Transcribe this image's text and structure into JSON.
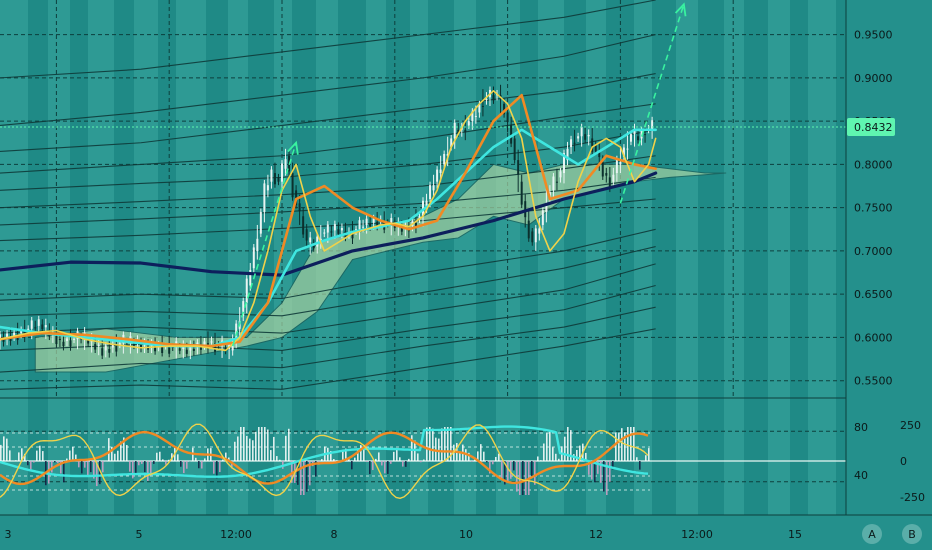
{
  "colors": {
    "background": "#24908c",
    "band_light": "#3aa7a0",
    "band_dark": "#1f8a86",
    "grid": "#0d3f3d",
    "sma_long": "#0d1f5c",
    "ema_fast": "#f0d24a",
    "ema_mid": "#f08a24",
    "ema_cyan": "#3fe6e0",
    "envelope": "#0e3a38",
    "cloud": "#a6d2a3",
    "arrow": "#39f2a0",
    "candle_up": "#e8f4f2",
    "candle_down": "#0b2f2d",
    "price_line": "#5ff5b0",
    "price_label_bg": "#5ff5b0",
    "osc_hist_up": "#ffffff",
    "osc_hist_down": "#d3a0c8",
    "osc_hist_dark": "#101a40"
  },
  "chart_data": {
    "type": "line",
    "instrument": "",
    "y_axis": {
      "ticks": [
        "0.9500",
        "0.9000",
        "0.8500",
        "0.8000",
        "0.7500",
        "0.7000",
        "0.6500",
        "0.6000",
        "0.5500"
      ],
      "tick_values": [
        0.95,
        0.9,
        0.85,
        0.8,
        0.75,
        0.7,
        0.65,
        0.6,
        0.55
      ],
      "range": [
        0.53,
        0.99
      ]
    },
    "current_price": {
      "value": 0.8432,
      "label": "0.8432"
    },
    "x_axis": {
      "labels": [
        "3",
        "5",
        "12:00",
        "8",
        "10",
        "12",
        "12:00",
        "15"
      ],
      "range": [
        0,
        120
      ]
    },
    "oscillator": {
      "left_ticks": [
        "80",
        "40"
      ],
      "left_values": [
        80,
        40
      ],
      "right_ticks": [
        "250",
        "0",
        "-250"
      ],
      "right_values": [
        250,
        0,
        -250
      ]
    },
    "series": [
      {
        "id": "price",
        "x": [
          0,
          3,
          6,
          9,
          12,
          15,
          18,
          21,
          24,
          27,
          30,
          33,
          34,
          35,
          36,
          37,
          38,
          39,
          40,
          41,
          42,
          43,
          44,
          45,
          46,
          48,
          50,
          52,
          54,
          56,
          58,
          60,
          62,
          64,
          65,
          66,
          67,
          68,
          69,
          70,
          71,
          72,
          73,
          74,
          75,
          76,
          77,
          78,
          79,
          80,
          81,
          82,
          83,
          84,
          85,
          86,
          87,
          88,
          90,
          91,
          92,
          93
        ],
        "values": [
          0.596,
          0.605,
          0.615,
          0.595,
          0.6,
          0.585,
          0.595,
          0.59,
          0.59,
          0.585,
          0.595,
          0.585,
          0.61,
          0.64,
          0.68,
          0.72,
          0.77,
          0.79,
          0.78,
          0.81,
          0.77,
          0.74,
          0.71,
          0.705,
          0.72,
          0.725,
          0.72,
          0.73,
          0.735,
          0.73,
          0.725,
          0.74,
          0.78,
          0.82,
          0.84,
          0.84,
          0.85,
          0.86,
          0.875,
          0.88,
          0.88,
          0.86,
          0.83,
          0.78,
          0.735,
          0.71,
          0.73,
          0.76,
          0.78,
          0.79,
          0.82,
          0.83,
          0.835,
          0.83,
          0.815,
          0.79,
          0.78,
          0.8,
          0.835,
          0.83,
          0.84,
          0.843
        ]
      },
      {
        "id": "sma-long",
        "x": [
          0,
          10,
          20,
          30,
          40,
          50,
          60,
          70,
          80,
          90,
          93
        ],
        "values": [
          0.678,
          0.687,
          0.686,
          0.676,
          0.672,
          0.7,
          0.715,
          0.735,
          0.76,
          0.78,
          0.79
        ]
      },
      {
        "id": "ema-fast",
        "x": [
          0,
          4,
          8,
          12,
          16,
          20,
          24,
          28,
          32,
          34,
          36,
          38,
          40,
          42,
          44,
          46,
          48,
          50,
          52,
          54,
          56,
          58,
          60,
          62,
          64,
          66,
          68,
          70,
          72,
          74,
          76,
          78,
          80,
          82,
          84,
          86,
          88,
          90,
          92,
          93
        ],
        "values": [
          0.598,
          0.605,
          0.608,
          0.598,
          0.592,
          0.588,
          0.59,
          0.59,
          0.585,
          0.6,
          0.64,
          0.7,
          0.77,
          0.8,
          0.74,
          0.7,
          0.71,
          0.72,
          0.725,
          0.73,
          0.732,
          0.728,
          0.74,
          0.77,
          0.82,
          0.85,
          0.87,
          0.885,
          0.87,
          0.83,
          0.74,
          0.7,
          0.72,
          0.78,
          0.82,
          0.83,
          0.82,
          0.78,
          0.8,
          0.83
        ]
      },
      {
        "id": "ema-mid",
        "x": [
          0,
          6,
          12,
          18,
          24,
          30,
          34,
          38,
          42,
          46,
          50,
          54,
          58,
          62,
          66,
          70,
          74,
          78,
          82,
          86,
          90,
          93
        ],
        "values": [
          0.598,
          0.605,
          0.603,
          0.598,
          0.592,
          0.59,
          0.595,
          0.64,
          0.76,
          0.775,
          0.75,
          0.735,
          0.725,
          0.735,
          0.79,
          0.85,
          0.88,
          0.76,
          0.77,
          0.81,
          0.8,
          0.795
        ]
      },
      {
        "id": "ema-cyan",
        "x": [
          0,
          6,
          12,
          18,
          24,
          30,
          34,
          38,
          42,
          46,
          50,
          54,
          58,
          62,
          66,
          70,
          74,
          78,
          82,
          86,
          90,
          93
        ],
        "values": [
          0.612,
          0.605,
          0.6,
          0.595,
          0.59,
          0.59,
          0.6,
          0.64,
          0.7,
          0.712,
          0.722,
          0.728,
          0.735,
          0.76,
          0.79,
          0.82,
          0.84,
          0.82,
          0.8,
          0.82,
          0.84,
          0.84
        ]
      }
    ],
    "envelopes": {
      "upper": [
        [
          [
            0,
            0.9
          ],
          [
            20,
            0.91
          ],
          [
            40,
            0.93
          ],
          [
            60,
            0.95
          ],
          [
            80,
            0.97
          ],
          [
            93,
            0.99
          ]
        ],
        [
          [
            0,
            0.845
          ],
          [
            20,
            0.86
          ],
          [
            40,
            0.88
          ],
          [
            60,
            0.9
          ],
          [
            80,
            0.925
          ],
          [
            93,
            0.95
          ]
        ],
        [
          [
            0,
            0.815
          ],
          [
            20,
            0.825
          ],
          [
            40,
            0.845
          ],
          [
            60,
            0.865
          ],
          [
            80,
            0.885
          ],
          [
            93,
            0.905
          ]
        ],
        [
          [
            0,
            0.79
          ],
          [
            20,
            0.8
          ],
          [
            40,
            0.81
          ],
          [
            60,
            0.83
          ],
          [
            80,
            0.855
          ],
          [
            93,
            0.87
          ]
        ],
        [
          [
            0,
            0.77
          ],
          [
            20,
            0.778
          ],
          [
            40,
            0.785
          ],
          [
            60,
            0.8
          ],
          [
            80,
            0.82
          ],
          [
            93,
            0.84
          ]
        ],
        [
          [
            0,
            0.75
          ],
          [
            20,
            0.757
          ],
          [
            40,
            0.765
          ],
          [
            60,
            0.775
          ],
          [
            80,
            0.795
          ],
          [
            93,
            0.81
          ]
        ],
        [
          [
            0,
            0.73
          ],
          [
            20,
            0.737
          ],
          [
            40,
            0.745
          ],
          [
            60,
            0.755
          ],
          [
            80,
            0.77
          ],
          [
            93,
            0.785
          ]
        ],
        [
          [
            0,
            0.712
          ],
          [
            20,
            0.718
          ],
          [
            40,
            0.726
          ],
          [
            60,
            0.735
          ],
          [
            80,
            0.75
          ],
          [
            93,
            0.76
          ]
        ]
      ],
      "lower": [
        [
          [
            0,
            0.643
          ],
          [
            20,
            0.65
          ],
          [
            40,
            0.645
          ],
          [
            60,
            0.675
          ],
          [
            80,
            0.7
          ],
          [
            93,
            0.725
          ]
        ],
        [
          [
            0,
            0.625
          ],
          [
            20,
            0.63
          ],
          [
            40,
            0.625
          ],
          [
            60,
            0.652
          ],
          [
            80,
            0.68
          ],
          [
            93,
            0.705
          ]
        ],
        [
          [
            0,
            0.605
          ],
          [
            20,
            0.612
          ],
          [
            40,
            0.605
          ],
          [
            60,
            0.63
          ],
          [
            80,
            0.655
          ],
          [
            93,
            0.685
          ]
        ],
        [
          [
            0,
            0.585
          ],
          [
            20,
            0.592
          ],
          [
            40,
            0.585
          ],
          [
            60,
            0.61
          ],
          [
            80,
            0.632
          ],
          [
            93,
            0.66
          ]
        ],
        [
          [
            0,
            0.56
          ],
          [
            20,
            0.57
          ],
          [
            40,
            0.565
          ],
          [
            60,
            0.59
          ],
          [
            80,
            0.612
          ],
          [
            93,
            0.635
          ]
        ],
        [
          [
            0,
            0.54
          ],
          [
            20,
            0.545
          ],
          [
            40,
            0.54
          ],
          [
            60,
            0.565
          ],
          [
            80,
            0.59
          ],
          [
            93,
            0.61
          ]
        ]
      ]
    },
    "cloud": {
      "upper": [
        [
          5,
          0.6
        ],
        [
          15,
          0.61
        ],
        [
          25,
          0.6
        ],
        [
          35,
          0.6
        ],
        [
          40,
          0.64
        ],
        [
          45,
          0.71
        ],
        [
          50,
          0.72
        ],
        [
          55,
          0.73
        ],
        [
          60,
          0.74
        ],
        [
          65,
          0.76
        ],
        [
          70,
          0.8
        ],
        [
          75,
          0.79
        ],
        [
          80,
          0.8
        ],
        [
          85,
          0.8
        ],
        [
          90,
          0.8
        ],
        [
          95,
          0.795
        ],
        [
          100,
          0.79
        ],
        [
          103,
          0.79
        ]
      ],
      "lower": [
        [
          5,
          0.56
        ],
        [
          15,
          0.56
        ],
        [
          25,
          0.575
        ],
        [
          35,
          0.59
        ],
        [
          40,
          0.6
        ],
        [
          45,
          0.63
        ],
        [
          50,
          0.69
        ],
        [
          55,
          0.7
        ],
        [
          60,
          0.71
        ],
        [
          65,
          0.715
        ],
        [
          70,
          0.74
        ],
        [
          75,
          0.73
        ],
        [
          80,
          0.76
        ],
        [
          85,
          0.77
        ],
        [
          90,
          0.78
        ],
        [
          95,
          0.785
        ],
        [
          100,
          0.788
        ],
        [
          103,
          0.79
        ]
      ]
    },
    "arrows": [
      {
        "from": [
          33,
          0.59
        ],
        "to": [
          42,
          0.825
        ]
      },
      {
        "from": [
          88,
          0.755
        ],
        "to": [
          97,
          0.985
        ]
      }
    ]
  },
  "scale_buttons": [
    {
      "label": "A"
    },
    {
      "label": "B"
    }
  ]
}
